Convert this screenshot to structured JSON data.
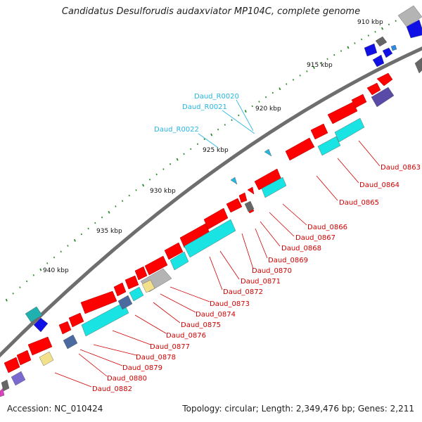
{
  "title": "Candidatus Desulforudis audaxviator MP104C, complete genome",
  "footer": {
    "accession": "Accession: NC_010424",
    "summary": "Topology: circular; Length: 2,349,476 bp; Genes: 2,211"
  },
  "colors": {
    "cds": "#ff0000",
    "tick": "#2a8a2a",
    "backbone": "#6e6e6e",
    "rna_label": "#27b6e0",
    "cds_label": "#d00000",
    "cog_cyan": "#19e3e3",
    "cog_blue": "#1010e6",
    "cog_gray": "#b4b4b4",
    "cog_yellow": "#f2e08a",
    "cog_slate": "#4a6aa0",
    "cog_purple": "#5a4aa8"
  },
  "scale_labels": [
    "910 kbp",
    "915 kbp",
    "920 kbp",
    "925 kbp",
    "930 kbp",
    "935 kbp",
    "940 kbp"
  ],
  "rna_labels": [
    "Daud_R0020",
    "Daud_R0021",
    "Daud_R0022"
  ],
  "gene_labels": [
    "Daud_0863",
    "Daud_0864",
    "Daud_0865",
    "Daud_0866",
    "Daud_0867",
    "Daud_0868",
    "Daud_0869",
    "Daud_0870",
    "Daud_0871",
    "Daud_0872",
    "Daud_0873",
    "Daud_0874",
    "Daud_0875",
    "Daud_0876",
    "Daud_0877",
    "Daud_0878",
    "Daud_0879",
    "Daud_0880",
    "Daud_0882"
  ]
}
